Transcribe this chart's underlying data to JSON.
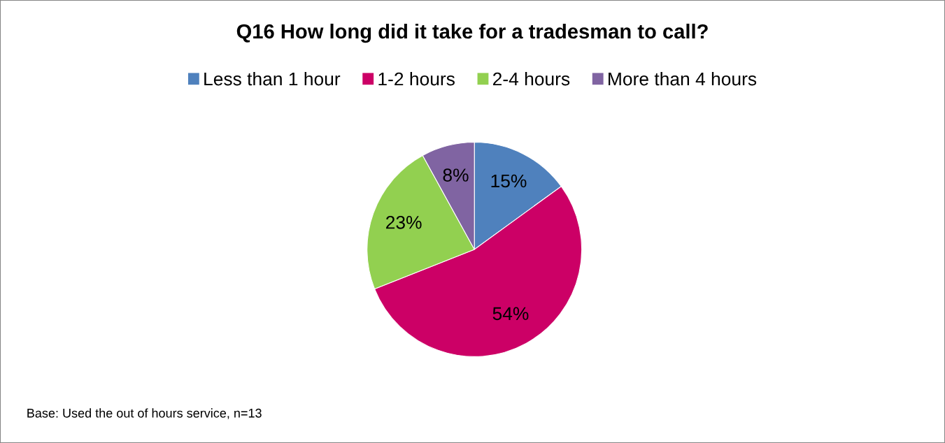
{
  "chart_data": {
    "type": "pie",
    "title": "Q16 How long did it take for a tradesman to call?",
    "categories": [
      "Less than 1 hour",
      "1-2 hours",
      "2-4 hours",
      "More than 4 hours"
    ],
    "values": [
      15,
      54,
      23,
      8
    ],
    "colors": [
      "#4f81bd",
      "#cc0066",
      "#92d050",
      "#8064a2"
    ],
    "value_labels": [
      "15%",
      "54%",
      "23%",
      "8%"
    ],
    "legend": "top",
    "annotations": [
      "Base: Used the out of hours service, n=13"
    ]
  }
}
